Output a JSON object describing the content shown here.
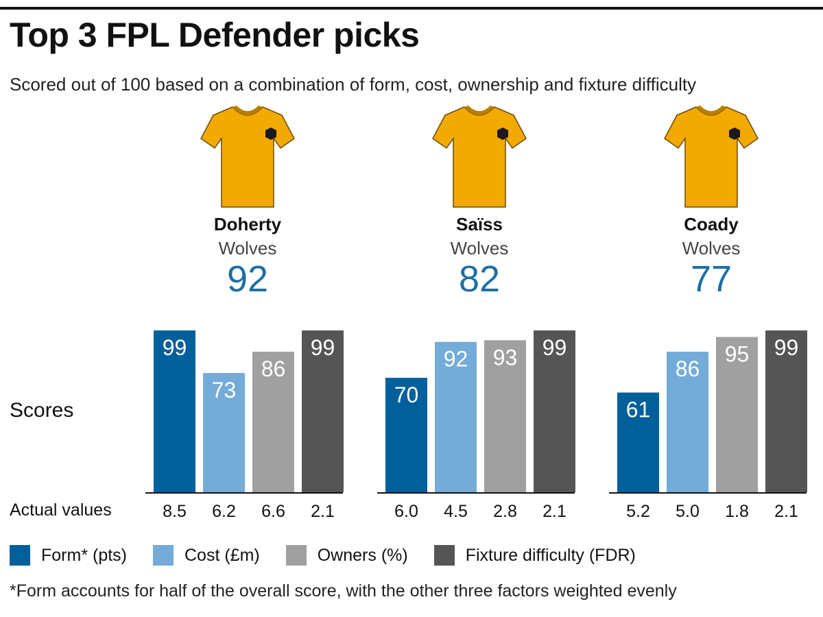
{
  "title": "Top 3 FPL Defender picks",
  "subtitle": "Scored out of 100 based on a combination of form, cost, ownership and fixture difficulty",
  "row_labels": {
    "scores": "Scores",
    "actual": "Actual values"
  },
  "footnote": "*Form accounts for half of the overall score, with the other three factors weighted evenly",
  "colors": {
    "form": "#00609b",
    "cost": "#73acd8",
    "owners": "#a0a0a0",
    "fdr": "#555555",
    "score_text": "#1d6fa5",
    "shirt": "#f2a900",
    "shirt_collar": "#b87f00"
  },
  "icons": {
    "shirt": "football-shirt-icon"
  },
  "players": [
    {
      "name": "Doherty",
      "team": "Wolves",
      "score": "92"
    },
    {
      "name": "Saïss",
      "team": "Wolves",
      "score": "82"
    },
    {
      "name": "Coady",
      "team": "Wolves",
      "score": "77"
    }
  ],
  "chart_data": {
    "type": "bar",
    "ylim": [
      0,
      100
    ],
    "legend_position": "bottom",
    "categories": [
      "Doherty",
      "Saïss",
      "Coady"
    ],
    "series": [
      {
        "name": "Form* (pts)",
        "key": "form",
        "values": [
          99,
          70,
          61
        ],
        "actual": [
          "8.5",
          "6.0",
          "5.2"
        ]
      },
      {
        "name": "Cost (£m)",
        "key": "cost",
        "values": [
          73,
          92,
          86
        ],
        "actual": [
          "6.2",
          "4.5",
          "5.0"
        ]
      },
      {
        "name": "Owners (%)",
        "key": "owners",
        "values": [
          86,
          93,
          95
        ],
        "actual": [
          "6.6",
          "2.8",
          "1.8"
        ]
      },
      {
        "name": "Fixture difficulty (FDR)",
        "key": "fdr",
        "values": [
          99,
          99,
          99
        ],
        "actual": [
          "2.1",
          "2.1",
          "2.1"
        ]
      }
    ]
  }
}
